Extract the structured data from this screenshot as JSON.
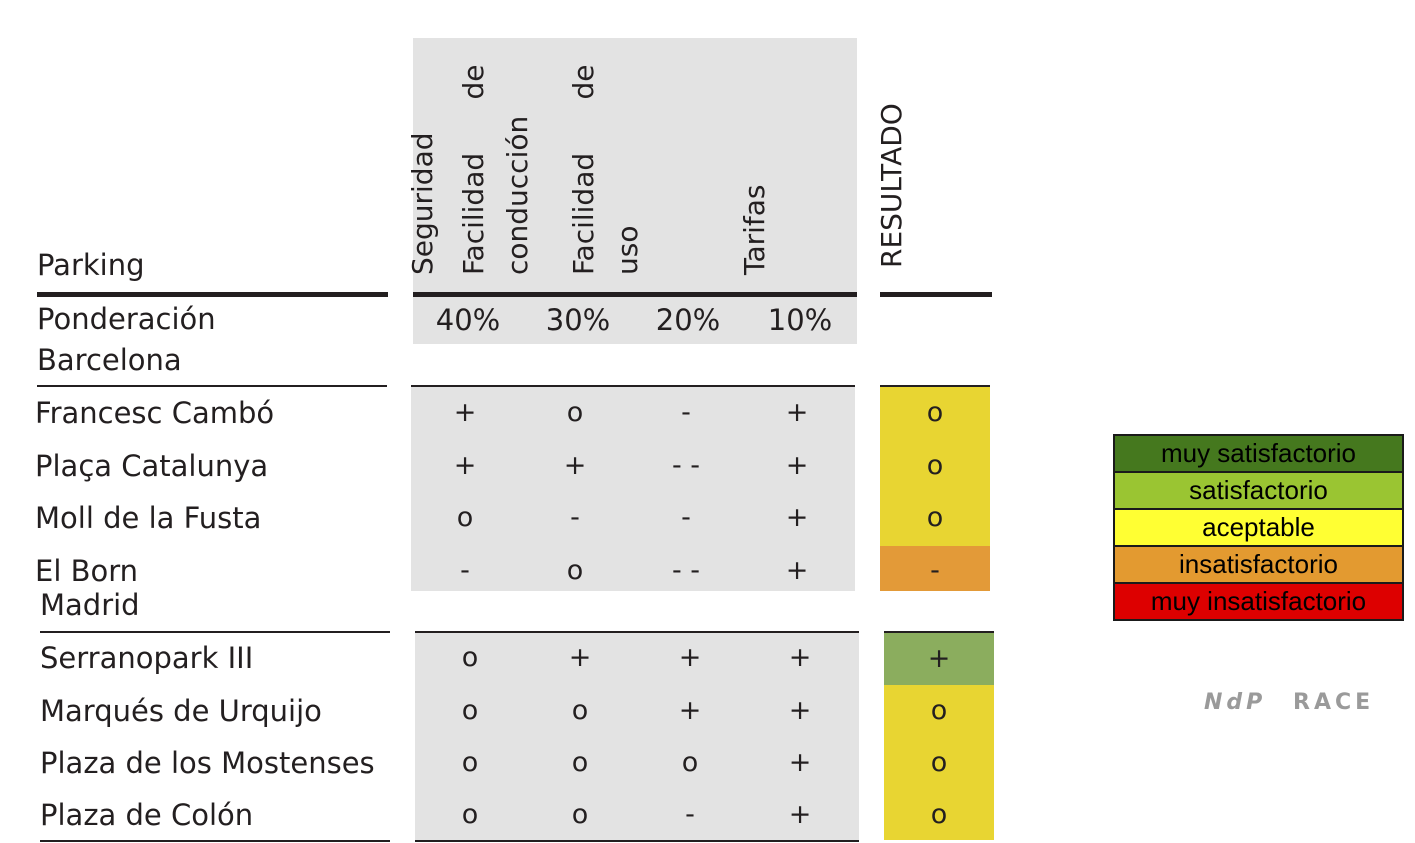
{
  "header": {
    "row_label": "Parking",
    "criteria": [
      {
        "line1": "Seguridad",
        "line2": ""
      },
      {
        "line1": "Facilidad      de",
        "line2": "conducción"
      },
      {
        "line1": "Facilidad      de",
        "line2": "uso"
      },
      {
        "line1": "Tarifas",
        "line2": ""
      }
    ],
    "result_label": "RESULTADO"
  },
  "weights": {
    "label": "Ponderación",
    "values": [
      "40%",
      "30%",
      "20%",
      "10%"
    ]
  },
  "groups": [
    {
      "city": "Barcelona",
      "rows": [
        {
          "name": "Francesc Cambó",
          "scores": [
            "+",
            "o",
            "-",
            "+"
          ],
          "result": "o",
          "result_level": "aceptable"
        },
        {
          "name": "Plaça Catalunya",
          "scores": [
            "+",
            "+",
            "- -",
            "+"
          ],
          "result": "o",
          "result_level": "aceptable"
        },
        {
          "name": "Moll de la Fusta",
          "scores": [
            "o",
            "-",
            "-",
            "+"
          ],
          "result": "o",
          "result_level": "aceptable"
        },
        {
          "name": "El Born",
          "scores": [
            "-",
            "o",
            "- -",
            "+"
          ],
          "result": "-",
          "result_level": "insatisfactorio"
        }
      ]
    },
    {
      "city": "Madrid",
      "rows": [
        {
          "name": "Serranopark III",
          "scores": [
            "o",
            "+",
            "+",
            "+"
          ],
          "result": "+",
          "result_level": "satisfactorio"
        },
        {
          "name": "Marqués de Urquijo",
          "scores": [
            "o",
            "o",
            "+",
            "+"
          ],
          "result": "o",
          "result_level": "aceptable"
        },
        {
          "name": "Plaza de los Mostenses",
          "scores": [
            "o",
            "o",
            "o",
            "+"
          ],
          "result": "o",
          "result_level": "aceptable"
        },
        {
          "name": "Plaza de Colón",
          "scores": [
            "o",
            "o",
            "-",
            "+"
          ],
          "result": "o",
          "result_level": "aceptable"
        }
      ]
    }
  ],
  "result_colors": {
    "aceptable": "#e8d532",
    "insatisfactorio": "#e39a38",
    "satisfactorio": "#8bad5e"
  },
  "legend": [
    {
      "label": "muy satisfactorio",
      "color": "#45781e"
    },
    {
      "label": "satisfactorio",
      "color": "#9ac532"
    },
    {
      "label": "aceptable",
      "color": "#ffff33"
    },
    {
      "label": "insatisfactorio",
      "color": "#e39a30"
    },
    {
      "label": "muy insatisfactorio",
      "color": "#dd0000"
    }
  ],
  "credit": {
    "left": "NdP",
    "right": "RACE"
  }
}
